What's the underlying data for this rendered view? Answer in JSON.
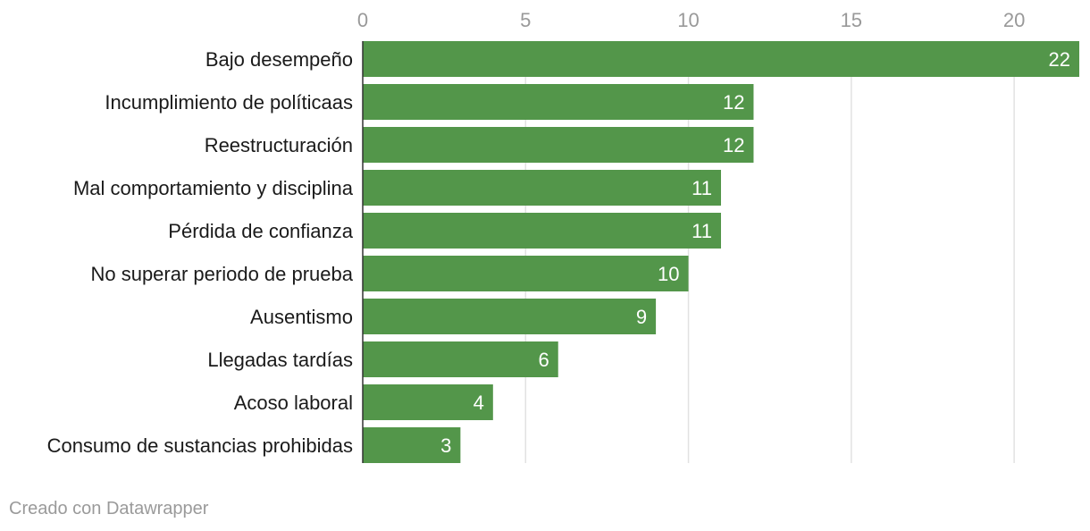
{
  "chart_data": {
    "type": "bar",
    "orientation": "horizontal",
    "categories": [
      "Bajo desempeño",
      "Incumplimiento de políticaas",
      "Reestructuración",
      "Mal comportamiento y disciplina",
      "Pérdida de confianza",
      "No superar periodo de prueba",
      "Ausentismo",
      "Llegadas tardías",
      "Acoso laboral",
      "Consumo de sustancias prohibidas"
    ],
    "values": [
      22,
      12,
      12,
      11,
      11,
      10,
      9,
      6,
      4,
      3
    ],
    "value_labels": [
      "22",
      "12",
      "12",
      "11",
      "11",
      "10",
      "9",
      "6",
      "4",
      "3"
    ],
    "x_ticks": [
      0,
      5,
      10,
      15,
      20
    ],
    "x_tick_labels": [
      "0",
      "5",
      "10",
      "15",
      "20"
    ],
    "xlim": [
      0,
      22
    ],
    "grid": true,
    "axis_position": "top",
    "bar_color": "#53964a"
  },
  "footer": {
    "credit": "Creado con Datawrapper"
  }
}
